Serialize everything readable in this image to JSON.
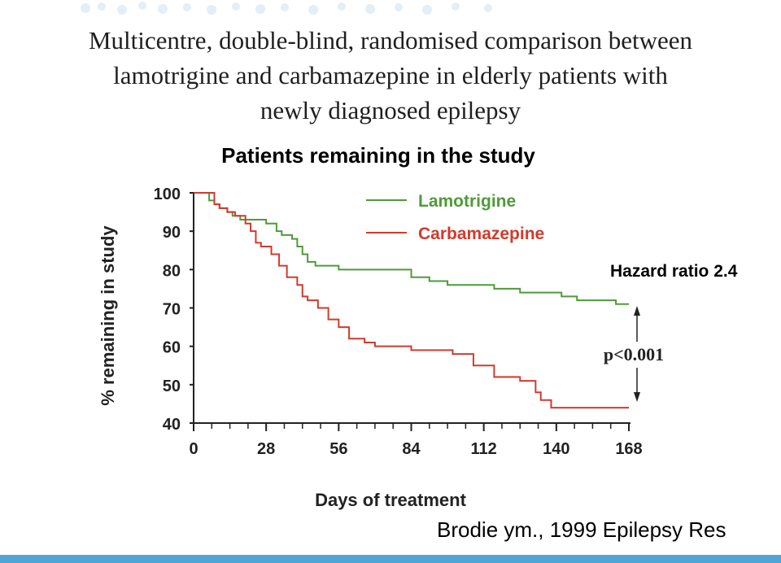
{
  "slide": {
    "title_lines": [
      "Multicentre, double-blind, randomised comparison between",
      "lamotrigine and carbamazepine in elderly patients with",
      "newly diagnosed epilepsy"
    ],
    "subtitle": "Patients remaining in the study",
    "hazard_ratio": "Hazard ratio 2.4",
    "citation": "Brodie ym., 1999 Epilepsy Res",
    "accent_color": "#4fa6d6"
  },
  "chart_data": {
    "type": "line",
    "step": true,
    "xlabel": "Days of treatment",
    "ylabel": "% remaining in study",
    "xlim": [
      0,
      168
    ],
    "ylim": [
      40,
      100
    ],
    "x_ticks": [
      "0",
      "28",
      "56",
      "84",
      "112",
      "140",
      "168"
    ],
    "y_ticks": [
      "100",
      "90",
      "80",
      "70",
      "60",
      "50",
      "40"
    ],
    "annotation": "p<0.001",
    "series": [
      {
        "name": "Lamotrigine",
        "color": "#4f9a3a",
        "x": [
          0,
          6,
          8,
          10,
          13,
          15,
          18,
          24,
          28,
          32,
          34,
          38,
          40,
          42,
          44,
          47,
          50,
          56,
          70,
          84,
          91,
          98,
          108,
          116,
          126,
          140,
          142,
          148,
          160,
          163,
          168
        ],
        "y": [
          100,
          98,
          97,
          96,
          95,
          94,
          93,
          93,
          92,
          90,
          89,
          88,
          86,
          84,
          82,
          81,
          81,
          80,
          80,
          78,
          77,
          76,
          76,
          75,
          74,
          74,
          73,
          72,
          72,
          71,
          71
        ]
      },
      {
        "name": "Carbamazepine",
        "color": "#d23a2e",
        "x": [
          0,
          8,
          10,
          13,
          16,
          20,
          22,
          24,
          26,
          30,
          33,
          36,
          40,
          42,
          44,
          48,
          52,
          56,
          60,
          66,
          70,
          84,
          100,
          108,
          116,
          126,
          132,
          134,
          138,
          168
        ],
        "y": [
          100,
          97,
          96,
          95,
          94,
          92,
          90,
          87,
          86,
          84,
          81,
          78,
          76,
          73,
          72,
          70,
          67,
          65,
          62,
          61,
          60,
          59,
          58,
          55,
          52,
          51,
          48,
          46,
          44,
          44
        ]
      }
    ]
  }
}
